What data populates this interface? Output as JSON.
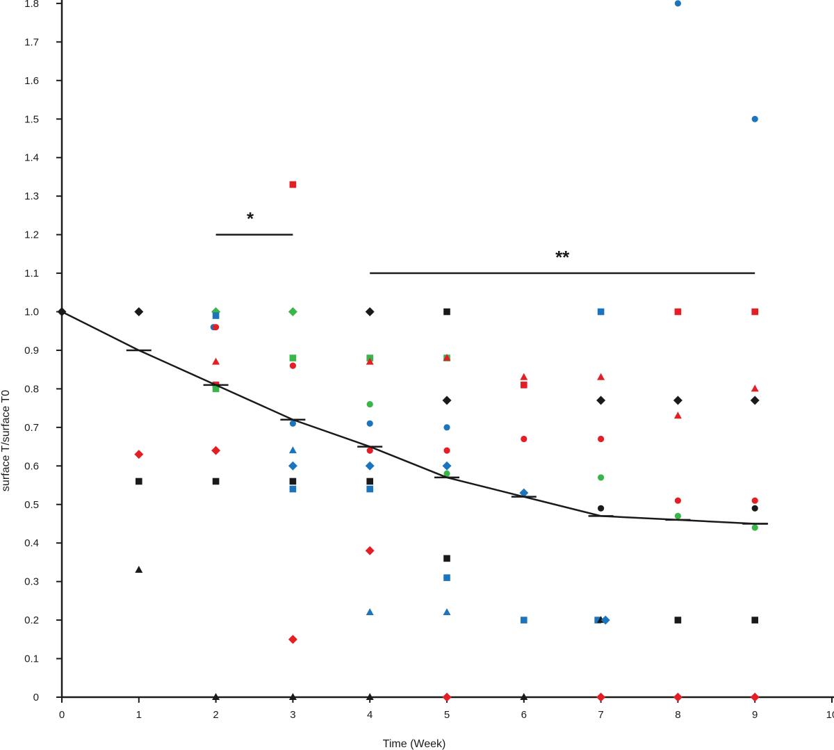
{
  "chart_data": {
    "type": "scatter",
    "title": "",
    "xlabel": "Time (Week)",
    "ylabel": "surface T/surface T0",
    "xlim": [
      0,
      10
    ],
    "ylim": [
      0,
      1.8
    ],
    "x_ticks": [
      "0",
      "1",
      "2",
      "3",
      "4",
      "5",
      "6",
      "7",
      "8",
      "9",
      "10"
    ],
    "y_ticks": [
      "0",
      "0.1",
      "0.2",
      "0.3",
      "0.4",
      "0.5",
      "0.6",
      "0.7",
      "0.8",
      "0.9",
      "1.0",
      "1.1",
      "1.2",
      "1.3",
      "1.4",
      "1.5",
      "1.6",
      "1.7",
      "1.8"
    ],
    "grid": false,
    "legend": "none",
    "colors": {
      "black": "#1a1a1a",
      "red": "#e31e25",
      "blue": "#1c75bc",
      "green": "#39b54a"
    },
    "mean_line": {
      "x": [
        0,
        1,
        2,
        3,
        4,
        5,
        6,
        7,
        8,
        9
      ],
      "y": [
        1.0,
        0.9,
        0.81,
        0.72,
        0.65,
        0.57,
        0.52,
        0.47,
        0.46,
        0.45
      ]
    },
    "significance": [
      {
        "label": "*",
        "x_from": 2,
        "x_to": 3,
        "y": 1.2
      },
      {
        "label": "**",
        "x_from": 4,
        "x_to": 9,
        "y": 1.1
      }
    ],
    "points": [
      {
        "x": 0,
        "y": 1.0,
        "shape": "circle",
        "color": "black"
      },
      {
        "x": 0,
        "y": 1.0,
        "shape": "diamond",
        "color": "black"
      },
      {
        "x": 1,
        "y": 1.0,
        "shape": "circle",
        "color": "black"
      },
      {
        "x": 1,
        "y": 1.0,
        "shape": "diamond",
        "color": "black"
      },
      {
        "x": 1,
        "y": 0.63,
        "shape": "diamond",
        "color": "red"
      },
      {
        "x": 1,
        "y": 0.56,
        "shape": "square",
        "color": "black"
      },
      {
        "x": 1,
        "y": 0.33,
        "shape": "triangle",
        "color": "black"
      },
      {
        "x": 2,
        "y": 1.0,
        "shape": "diamond",
        "color": "green"
      },
      {
        "x": 2,
        "y": 0.99,
        "shape": "square",
        "color": "blue"
      },
      {
        "x": 1.97,
        "y": 0.96,
        "shape": "circle",
        "color": "blue"
      },
      {
        "x": 2,
        "y": 0.96,
        "shape": "circle",
        "color": "red"
      },
      {
        "x": 2,
        "y": 0.87,
        "shape": "triangle",
        "color": "red"
      },
      {
        "x": 2,
        "y": 0.81,
        "shape": "square",
        "color": "red"
      },
      {
        "x": 2,
        "y": 0.8,
        "shape": "square",
        "color": "green"
      },
      {
        "x": 2,
        "y": 0.64,
        "shape": "diamond",
        "color": "red"
      },
      {
        "x": 2,
        "y": 0.56,
        "shape": "square",
        "color": "black"
      },
      {
        "x": 2,
        "y": 0.0,
        "shape": "triangle",
        "color": "black"
      },
      {
        "x": 3,
        "y": 1.33,
        "shape": "square",
        "color": "red"
      },
      {
        "x": 3,
        "y": 1.0,
        "shape": "diamond",
        "color": "green"
      },
      {
        "x": 3,
        "y": 0.88,
        "shape": "square",
        "color": "green"
      },
      {
        "x": 3,
        "y": 0.86,
        "shape": "circle",
        "color": "red"
      },
      {
        "x": 3,
        "y": 0.71,
        "shape": "circle",
        "color": "blue"
      },
      {
        "x": 3,
        "y": 0.64,
        "shape": "triangle",
        "color": "blue"
      },
      {
        "x": 3,
        "y": 0.6,
        "shape": "diamond",
        "color": "blue"
      },
      {
        "x": 3,
        "y": 0.56,
        "shape": "square",
        "color": "black"
      },
      {
        "x": 3,
        "y": 0.54,
        "shape": "square",
        "color": "blue"
      },
      {
        "x": 3,
        "y": 0.15,
        "shape": "diamond",
        "color": "red"
      },
      {
        "x": 3,
        "y": 0.0,
        "shape": "triangle",
        "color": "black"
      },
      {
        "x": 4,
        "y": 1.0,
        "shape": "circle",
        "color": "red"
      },
      {
        "x": 4,
        "y": 1.0,
        "shape": "diamond",
        "color": "black"
      },
      {
        "x": 4,
        "y": 0.88,
        "shape": "square",
        "color": "green"
      },
      {
        "x": 4,
        "y": 0.87,
        "shape": "triangle",
        "color": "red"
      },
      {
        "x": 4,
        "y": 0.76,
        "shape": "circle",
        "color": "green"
      },
      {
        "x": 4,
        "y": 0.71,
        "shape": "circle",
        "color": "blue"
      },
      {
        "x": 4,
        "y": 0.64,
        "shape": "circle",
        "color": "red"
      },
      {
        "x": 4,
        "y": 0.6,
        "shape": "diamond",
        "color": "blue"
      },
      {
        "x": 4,
        "y": 0.56,
        "shape": "square",
        "color": "black"
      },
      {
        "x": 4,
        "y": 0.54,
        "shape": "square",
        "color": "blue"
      },
      {
        "x": 4,
        "y": 0.38,
        "shape": "diamond",
        "color": "red"
      },
      {
        "x": 4,
        "y": 0.22,
        "shape": "triangle",
        "color": "blue"
      },
      {
        "x": 4,
        "y": 0.0,
        "shape": "triangle",
        "color": "black"
      },
      {
        "x": 5,
        "y": 1.0,
        "shape": "square",
        "color": "black"
      },
      {
        "x": 5,
        "y": 0.88,
        "shape": "square",
        "color": "green"
      },
      {
        "x": 5,
        "y": 0.88,
        "shape": "triangle",
        "color": "red"
      },
      {
        "x": 5,
        "y": 0.77,
        "shape": "diamond",
        "color": "black"
      },
      {
        "x": 5,
        "y": 0.7,
        "shape": "circle",
        "color": "blue"
      },
      {
        "x": 5,
        "y": 0.64,
        "shape": "circle",
        "color": "red"
      },
      {
        "x": 5,
        "y": 0.6,
        "shape": "diamond",
        "color": "blue"
      },
      {
        "x": 5,
        "y": 0.58,
        "shape": "circle",
        "color": "green"
      },
      {
        "x": 5,
        "y": 0.36,
        "shape": "square",
        "color": "black"
      },
      {
        "x": 5,
        "y": 0.31,
        "shape": "square",
        "color": "blue"
      },
      {
        "x": 5,
        "y": 0.22,
        "shape": "triangle",
        "color": "blue"
      },
      {
        "x": 5,
        "y": 0.0,
        "shape": "diamond",
        "color": "red"
      },
      {
        "x": 6,
        "y": 0.83,
        "shape": "triangle",
        "color": "red"
      },
      {
        "x": 6,
        "y": 0.81,
        "shape": "square",
        "color": "red"
      },
      {
        "x": 6,
        "y": 0.67,
        "shape": "circle",
        "color": "red"
      },
      {
        "x": 6,
        "y": 0.53,
        "shape": "diamond",
        "color": "blue"
      },
      {
        "x": 6,
        "y": 0.2,
        "shape": "square",
        "color": "blue"
      },
      {
        "x": 6,
        "y": 0.0,
        "shape": "triangle",
        "color": "black"
      },
      {
        "x": 7,
        "y": 1.0,
        "shape": "square",
        "color": "blue"
      },
      {
        "x": 7,
        "y": 0.83,
        "shape": "triangle",
        "color": "red"
      },
      {
        "x": 7,
        "y": 0.77,
        "shape": "diamond",
        "color": "black"
      },
      {
        "x": 7,
        "y": 0.67,
        "shape": "circle",
        "color": "red"
      },
      {
        "x": 7,
        "y": 0.57,
        "shape": "circle",
        "color": "green"
      },
      {
        "x": 7,
        "y": 0.49,
        "shape": "circle",
        "color": "black"
      },
      {
        "x": 6.96,
        "y": 0.2,
        "shape": "square",
        "color": "blue"
      },
      {
        "x": 7,
        "y": 0.2,
        "shape": "triangle",
        "color": "black"
      },
      {
        "x": 7.06,
        "y": 0.2,
        "shape": "diamond",
        "color": "blue"
      },
      {
        "x": 7,
        "y": 0.0,
        "shape": "diamond",
        "color": "red"
      },
      {
        "x": 8,
        "y": 1.8,
        "shape": "circle",
        "color": "blue"
      },
      {
        "x": 8,
        "y": 1.0,
        "shape": "square",
        "color": "red"
      },
      {
        "x": 8,
        "y": 0.77,
        "shape": "diamond",
        "color": "black"
      },
      {
        "x": 8,
        "y": 0.73,
        "shape": "triangle",
        "color": "red"
      },
      {
        "x": 8,
        "y": 0.51,
        "shape": "circle",
        "color": "red"
      },
      {
        "x": 8,
        "y": 0.47,
        "shape": "circle",
        "color": "green"
      },
      {
        "x": 8,
        "y": 0.2,
        "shape": "square",
        "color": "black"
      },
      {
        "x": 8,
        "y": 0.0,
        "shape": "diamond",
        "color": "red"
      },
      {
        "x": 9,
        "y": 1.5,
        "shape": "circle",
        "color": "blue"
      },
      {
        "x": 9,
        "y": 1.0,
        "shape": "square",
        "color": "red"
      },
      {
        "x": 9,
        "y": 0.8,
        "shape": "triangle",
        "color": "red"
      },
      {
        "x": 9,
        "y": 0.77,
        "shape": "diamond",
        "color": "black"
      },
      {
        "x": 9,
        "y": 0.51,
        "shape": "circle",
        "color": "red"
      },
      {
        "x": 9,
        "y": 0.49,
        "shape": "circle",
        "color": "black"
      },
      {
        "x": 9,
        "y": 0.44,
        "shape": "circle",
        "color": "green"
      },
      {
        "x": 9,
        "y": 0.2,
        "shape": "square",
        "color": "black"
      },
      {
        "x": 9,
        "y": 0.0,
        "shape": "diamond",
        "color": "red"
      }
    ]
  }
}
